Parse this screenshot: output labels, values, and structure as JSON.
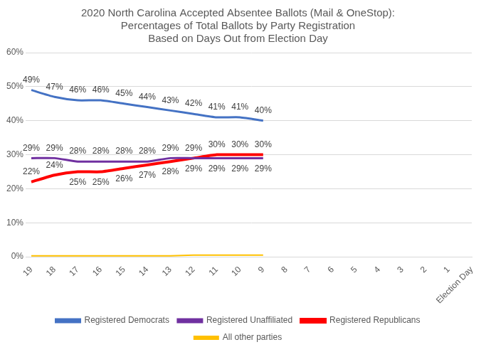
{
  "chart_data": {
    "type": "line",
    "title": [
      "2020 North Carolina Accepted Absentee Ballots (Mail & OneStop):",
      "Percentages of Total Ballots by Party Registration",
      "Based on Days Out from Election Day"
    ],
    "categories": [
      "19",
      "18",
      "17",
      "16",
      "15",
      "14",
      "13",
      "12",
      "11",
      "10",
      "9",
      "8",
      "7",
      "6",
      "5",
      "4",
      "3",
      "2",
      "1",
      "Election Day"
    ],
    "series": [
      {
        "name": "Registered Democrats",
        "color": "#4472c4",
        "values": [
          49,
          47,
          46,
          46,
          45,
          44,
          43,
          42,
          41,
          41,
          40,
          null,
          null,
          null,
          null,
          null,
          null,
          null,
          null,
          null
        ],
        "value_labels": [
          "49%",
          "47%",
          "46%",
          "46%",
          "45%",
          "44%",
          "43%",
          "42%",
          "41%",
          "41%",
          "40%",
          null,
          null,
          null,
          null,
          null,
          null,
          null,
          null,
          null
        ]
      },
      {
        "name": "Registered Unaffiliated",
        "color": "#7030a0",
        "values": [
          29,
          29,
          28,
          28,
          28,
          28,
          29,
          29,
          29,
          29,
          29,
          null,
          null,
          null,
          null,
          null,
          null,
          null,
          null,
          null
        ],
        "value_labels": [
          "29%",
          "29%",
          "28%",
          "28%",
          "28%",
          "28%",
          "29%",
          "29%",
          "29%",
          "29%",
          "29%",
          null,
          null,
          null,
          null,
          null,
          null,
          null,
          null,
          null
        ]
      },
      {
        "name": "Registered Republicans",
        "color": "#ff0000",
        "values": [
          22,
          24,
          25,
          25,
          26,
          27,
          28,
          29,
          30,
          30,
          30,
          null,
          null,
          null,
          null,
          null,
          null,
          null,
          null,
          null
        ],
        "value_labels": [
          "22%",
          "24%",
          "25%",
          "25%",
          "26%",
          "27%",
          "28%",
          "29%",
          "30%",
          "30%",
          "30%",
          null,
          null,
          null,
          null,
          null,
          null,
          null,
          null,
          null
        ]
      },
      {
        "name": "All other parties",
        "color": "#ffc000",
        "values": [
          0.3,
          0.3,
          0.3,
          0.3,
          0.3,
          0.3,
          0.3,
          0.5,
          0.5,
          0.5,
          0.5,
          null,
          null,
          null,
          null,
          null,
          null,
          null,
          null,
          null
        ]
      }
    ],
    "ylim": [
      0,
      60
    ],
    "yticks": [
      {
        "value": 0,
        "label": "0%"
      },
      {
        "value": 10,
        "label": "10%"
      },
      {
        "value": 20,
        "label": "20%"
      },
      {
        "value": 30,
        "label": "30%"
      },
      {
        "value": 40,
        "label": "40%"
      },
      {
        "value": 50,
        "label": "50%"
      },
      {
        "value": 60,
        "label": "60%"
      }
    ],
    "grid": true,
    "legend": "bottom",
    "data_labels": true,
    "marker": "none"
  }
}
